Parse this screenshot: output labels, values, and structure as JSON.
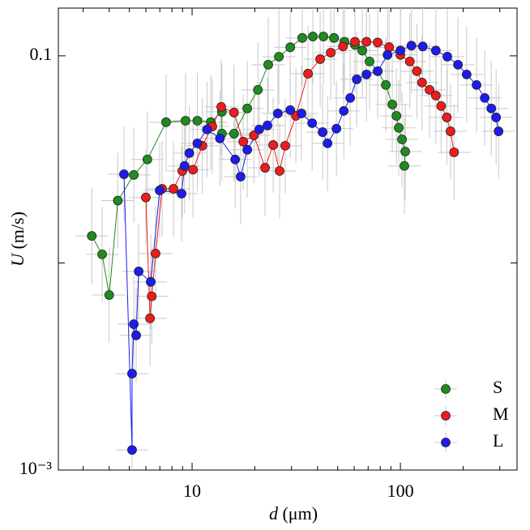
{
  "chart_data": {
    "type": "scatter",
    "xlabel": {
      "symbol": "d",
      "unit": "(μm)"
    },
    "ylabel": {
      "symbol": "U",
      "unit": "(m/s)"
    },
    "xscale": "log",
    "yscale": "log",
    "xlim": [
      2.28,
      363
    ],
    "ylim": [
      0.001,
      0.17
    ],
    "xticks": [
      10,
      100
    ],
    "yticks": [
      {
        "value": 0.001,
        "label": "10⁻³"
      },
      0.1
    ],
    "legend": "lower right",
    "error_bar_color": "#c8c8c8",
    "xerr_factor": 1.2,
    "yerr_factor": 1.7,
    "series": [
      {
        "name": "S",
        "color": "#1e8c1e",
        "x": [
          3.3,
          3.7,
          4.0,
          4.4,
          5.25,
          6.1,
          7.5,
          9.3,
          10.6,
          12.3,
          13.9,
          13.9,
          15.9,
          18.4,
          20.7,
          23.2,
          26.1,
          29.6,
          33.8,
          38.0,
          42.7,
          48.0,
          53.9,
          60.5,
          65.6,
          71.1,
          77.8,
          85.1,
          91.4,
          95.7,
          98.2,
          101.8,
          105.5,
          104.5
        ],
        "values": [
          0.0135,
          0.011,
          0.007,
          0.02,
          0.0266,
          0.0316,
          0.0478,
          0.0486,
          0.0486,
          0.0478,
          0.0537,
          0.0421,
          0.0421,
          0.0557,
          0.0685,
          0.0906,
          0.099,
          0.11,
          0.122,
          0.124,
          0.124,
          0.122,
          0.117,
          0.113,
          0.106,
          0.0939,
          0.0843,
          0.0723,
          0.0582,
          0.0513,
          0.0449,
          0.0395,
          0.0345,
          0.0294
        ]
      },
      {
        "name": "M",
        "color": "#ee1c1c",
        "x": [
          6.0,
          6.28,
          6.4,
          6.68,
          7.18,
          8.14,
          8.98,
          10.1,
          11.2,
          12.5,
          13.8,
          15.9,
          17.6,
          19.8,
          22.4,
          24.5,
          26.3,
          28.0,
          31.5,
          36.0,
          41.2,
          46.3,
          53.0,
          60.5,
          68.7,
          77.8,
          88.3,
          100,
          111,
          120,
          127,
          138,
          148,
          157,
          167,
          174,
          181
        ],
        "values": [
          0.0207,
          0.0054,
          0.0069,
          0.0111,
          0.0228,
          0.0228,
          0.0278,
          0.0282,
          0.0368,
          0.0456,
          0.0567,
          0.0532,
          0.0385,
          0.0413,
          0.0288,
          0.0371,
          0.0278,
          0.0368,
          0.0513,
          0.082,
          0.0964,
          0.1036,
          0.111,
          0.117,
          0.117,
          0.116,
          0.11,
          0.101,
          0.0939,
          0.0843,
          0.0743,
          0.0685,
          0.0643,
          0.0572,
          0.0504,
          0.0432,
          0.0342
        ]
      },
      {
        "name": "L",
        "color": "#1c1cee",
        "x": [
          4.71,
          5.15,
          5.15,
          5.25,
          5.39,
          5.54,
          6.33,
          6.99,
          8.9,
          9.2,
          9.7,
          10.6,
          11.8,
          13.6,
          16.1,
          17.1,
          18.4,
          21.0,
          23.0,
          25.8,
          29.6,
          33.5,
          37.7,
          42.3,
          44.7,
          49.3,
          53.5,
          57.4,
          61.7,
          68.7,
          77.8,
          86.7,
          100,
          113,
          128,
          148,
          168,
          189,
          208,
          232,
          254,
          273,
          288,
          296
        ],
        "values": [
          0.0268,
          0.00125,
          0.00292,
          0.00506,
          0.00447,
          0.0091,
          0.0081,
          0.0224,
          0.0216,
          0.0294,
          0.0339,
          0.0378,
          0.0441,
          0.0399,
          0.0316,
          0.0261,
          0.0352,
          0.0441,
          0.0461,
          0.0527,
          0.0547,
          0.0527,
          0.0473,
          0.0428,
          0.0378,
          0.0445,
          0.0542,
          0.0626,
          0.077,
          0.0813,
          0.0843,
          0.101,
          0.106,
          0.112,
          0.111,
          0.106,
          0.0991,
          0.0906,
          0.0813,
          0.0723,
          0.0626,
          0.0557,
          0.0504,
          0.0432
        ]
      }
    ]
  }
}
